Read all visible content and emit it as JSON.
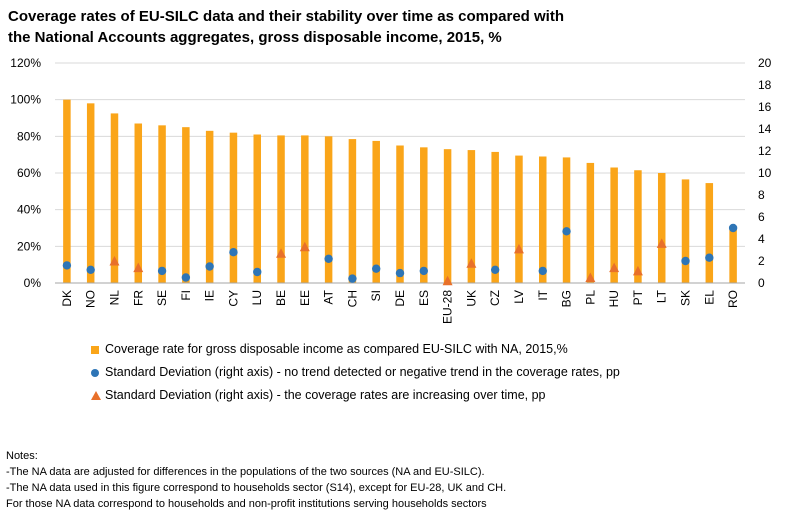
{
  "title": {
    "line1": "Coverage rates of EU-SILC data and their stability over time as compared with",
    "line2": "the National Accounts aggregates, gross disposable income, 2015, %"
  },
  "colors": {
    "bar": "#FAA519",
    "dot": "#2E75B6",
    "triangle": "#E8702A",
    "grid": "#D9D9D9",
    "axis": "#A6A6A6"
  },
  "chart_data": {
    "type": "bar",
    "categories": [
      "DK",
      "NO",
      "NL",
      "FR",
      "SE",
      "FI",
      "IE",
      "CY",
      "LU",
      "BE",
      "EE",
      "AT",
      "CH",
      "SI",
      "DE",
      "ES",
      "EU-28",
      "UK",
      "CZ",
      "LV",
      "IT",
      "BG",
      "PL",
      "HU",
      "PT",
      "LT",
      "SK",
      "EL",
      "RO"
    ],
    "series": [
      {
        "name": "Coverage rate for gross disposable income as compared EU-SILC with NA,  2015,%",
        "axis": "left",
        "marker": "bar",
        "values": [
          100,
          98,
          92.5,
          87,
          86,
          85,
          83,
          82,
          81,
          80.5,
          80.5,
          80,
          78.5,
          77.5,
          75,
          74,
          73,
          72.5,
          71.5,
          69.5,
          69,
          68.5,
          65.5,
          63,
          61.5,
          60,
          56.5,
          54.5,
          30
        ]
      },
      {
        "name": "Standard Deviation (right axis) - no trend detected or negative trend in the coverage rates, pp",
        "axis": "right",
        "marker": "circle",
        "values": [
          1.6,
          1.2,
          null,
          null,
          1.1,
          0.5,
          1.5,
          2.8,
          1.0,
          null,
          null,
          2.2,
          0.4,
          1.3,
          0.9,
          1.1,
          null,
          null,
          1.2,
          null,
          1.1,
          4.7,
          null,
          null,
          null,
          null,
          2.0,
          2.3,
          5.0
        ]
      },
      {
        "name": "Standard Deviation (right axis) -  the coverage rates are increasing over time, pp",
        "axis": "right",
        "marker": "triangle",
        "values": [
          null,
          null,
          2.0,
          1.4,
          null,
          null,
          null,
          null,
          null,
          2.7,
          3.3,
          null,
          null,
          null,
          null,
          null,
          0.2,
          1.8,
          null,
          3.1,
          null,
          null,
          0.5,
          1.4,
          1.1,
          3.6,
          null,
          null,
          null
        ]
      }
    ],
    "y_left": {
      "ylim": [
        0,
        120
      ],
      "ticks": [
        "0%",
        "20%",
        "40%",
        "60%",
        "80%",
        "100%",
        "120%"
      ]
    },
    "y_right": {
      "ylim": [
        0,
        20
      ],
      "ticks": [
        "0",
        "2",
        "4",
        "6",
        "8",
        "10",
        "12",
        "14",
        "16",
        "18",
        "20"
      ]
    },
    "grid": true,
    "legend_position": "bottom"
  },
  "notes": [
    "Notes:",
    "-The NA data are adjusted for differences in the populations of the two sources (NA and EU-SILC).",
    "-The NA data used in this figure correspond to households sector (S14), except for EU-28, UK and CH.",
    "For those NA data correspond to households and non-profit institutions serving households sectors"
  ]
}
